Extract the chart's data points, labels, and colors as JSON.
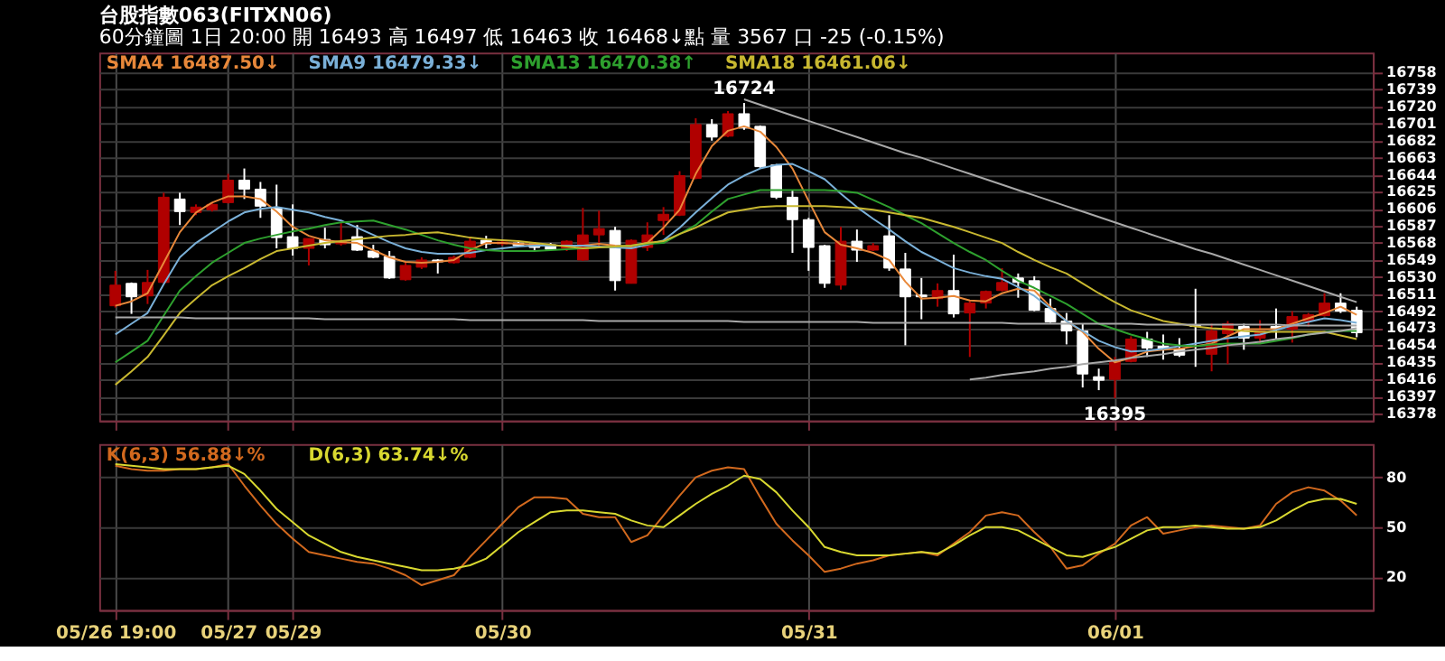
{
  "chart_data": [
    {
      "type": "candlestick",
      "title": "台股指數063(FITXN06)",
      "subtitle": "60分鐘圖  1日 20:00  開 16493  高 16497  低 16463  收 16468↓點  量 3567 口  -25 (-0.15%)",
      "ohlc": [
        [
          16498,
          16537,
          16496,
          16521
        ],
        [
          16523,
          16524,
          16489,
          16508
        ],
        [
          16509,
          16538,
          16500,
          16524
        ],
        [
          16524,
          16624,
          16523,
          16619
        ],
        [
          16617,
          16624,
          16588,
          16603
        ],
        [
          16602,
          16611,
          16599,
          16608
        ],
        [
          16605,
          16613,
          16603,
          16611
        ],
        [
          16613,
          16645,
          16612,
          16638
        ],
        [
          16638,
          16651,
          16617,
          16628
        ],
        [
          16628,
          16636,
          16596,
          16609
        ],
        [
          16607,
          16633,
          16562,
          16574
        ],
        [
          16575,
          16611,
          16554,
          16562
        ],
        [
          16562,
          16573,
          16543,
          16573
        ],
        [
          16572,
          16585,
          16562,
          16566
        ],
        [
          16567,
          16591,
          16565,
          16570
        ],
        [
          16575,
          16588,
          16559,
          16560
        ],
        [
          16559,
          16566,
          16551,
          16552
        ],
        [
          16553,
          16559,
          16528,
          16529
        ],
        [
          16527,
          16546,
          16526,
          16543
        ],
        [
          16541,
          16552,
          16539,
          16549
        ],
        [
          16549,
          16550,
          16534,
          16547
        ],
        [
          16546,
          16554,
          16545,
          16552
        ],
        [
          16552,
          16575,
          16551,
          16570
        ],
        [
          16571,
          16576,
          16562,
          16567
        ],
        [
          16567,
          16571,
          16565,
          16569
        ],
        [
          16568,
          16570,
          16563,
          16565
        ],
        [
          16567,
          16569,
          16560,
          16563
        ],
        [
          16566,
          16568,
          16560,
          16561
        ],
        [
          16562,
          16571,
          16559,
          16570
        ],
        [
          16549,
          16607,
          16548,
          16577
        ],
        [
          16577,
          16604,
          16565,
          16584
        ],
        [
          16582,
          16586,
          16515,
          16526
        ],
        [
          16523,
          16572,
          16523,
          16571
        ],
        [
          16563,
          16591,
          16559,
          16577
        ],
        [
          16593,
          16608,
          16577,
          16600
        ],
        [
          16599,
          16648,
          16598,
          16643
        ],
        [
          16640,
          16707,
          16639,
          16700
        ],
        [
          16700,
          16706,
          16682,
          16686
        ],
        [
          16687,
          16715,
          16686,
          16712
        ],
        [
          16712,
          16724,
          16694,
          16696
        ],
        [
          16698,
          16699,
          16651,
          16653
        ],
        [
          16655,
          16656,
          16617,
          16619
        ],
        [
          16619,
          16627,
          16557,
          16594
        ],
        [
          16594,
          16596,
          16537,
          16563
        ],
        [
          16565,
          16566,
          16518,
          16523
        ],
        [
          16521,
          16586,
          16516,
          16570
        ],
        [
          16570,
          16583,
          16547,
          16560
        ],
        [
          16560,
          16568,
          16559,
          16565
        ],
        [
          16576,
          16599,
          16537,
          16540
        ],
        [
          16539,
          16557,
          16454,
          16508
        ],
        [
          16510,
          16529,
          16483,
          16508
        ],
        [
          16506,
          16523,
          16497,
          16515
        ],
        [
          16515,
          16555,
          16485,
          16489
        ],
        [
          16490,
          16503,
          16441,
          16501
        ],
        [
          16501,
          16515,
          16495,
          16514
        ],
        [
          16515,
          16540,
          16514,
          16524
        ],
        [
          16529,
          16534,
          16507,
          16524
        ],
        [
          16526,
          16531,
          16492,
          16493
        ],
        [
          16495,
          16506,
          16479,
          16480
        ],
        [
          16481,
          16490,
          16455,
          16470
        ],
        [
          16470,
          16478,
          16407,
          16422
        ],
        [
          16419,
          16428,
          16404,
          16415
        ],
        [
          16416,
          16441,
          16395,
          16436
        ],
        [
          16436,
          16464,
          16435,
          16461
        ],
        [
          16461,
          16469,
          16441,
          16451
        ],
        [
          16453,
          16466,
          16438,
          16450
        ],
        [
          16450,
          16462,
          16441,
          16443
        ],
        [
          16476,
          16517,
          16430,
          16475
        ],
        [
          16444,
          16478,
          16425,
          16470
        ],
        [
          16467,
          16481,
          16433,
          16478
        ],
        [
          16475,
          16478,
          16449,
          16462
        ],
        [
          16462,
          16482,
          16456,
          16470
        ],
        [
          16475,
          16495,
          16461,
          16472
        ],
        [
          16472,
          16492,
          16457,
          16486
        ],
        [
          16481,
          16490,
          16475,
          16488
        ],
        [
          16487,
          16512,
          16486,
          16501
        ],
        [
          16501,
          16512,
          16490,
          16492
        ],
        [
          16493,
          16497,
          16463,
          16468
        ]
      ],
      "colors": [
        "#b00000",
        "#ffffff",
        "#b00000",
        "#b00000",
        "#ffffff",
        "#b00000",
        "#b00000",
        "#b00000",
        "#ffffff",
        "#ffffff",
        "#ffffff",
        "#ffffff",
        "#b00000",
        "#ffffff",
        "#b00000",
        "#ffffff",
        "#ffffff",
        "#ffffff",
        "#b00000",
        "#b00000",
        "#ffffff",
        "#b00000",
        "#b00000",
        "#ffffff",
        "#b00000",
        "#ffffff",
        "#ffffff",
        "#ffffff",
        "#b00000",
        "#b00000",
        "#b00000",
        "#ffffff",
        "#b00000",
        "#b00000",
        "#b00000",
        "#b00000",
        "#b00000",
        "#ffffff",
        "#b00000",
        "#ffffff",
        "#ffffff",
        "#ffffff",
        "#ffffff",
        "#ffffff",
        "#ffffff",
        "#b00000",
        "#ffffff",
        "#b00000",
        "#ffffff",
        "#ffffff",
        "#ffffff",
        "#b00000",
        "#ffffff",
        "#b00000",
        "#b00000",
        "#b00000",
        "#ffffff",
        "#ffffff",
        "#ffffff",
        "#ffffff",
        "#ffffff",
        "#ffffff",
        "#b00000",
        "#b00000",
        "#ffffff",
        "#ffffff",
        "#ffffff",
        "#ffffff",
        "#b00000",
        "#b00000",
        "#ffffff",
        "#b00000",
        "#ffffff",
        "#b00000",
        "#b00000",
        "#b00000",
        "#ffffff",
        "#ffffff"
      ],
      "series": [
        {
          "name": "SMA4 16487.50↓",
          "type": "line",
          "color": "#e8883a",
          "values": [
            16498,
            16503,
            16512,
            16546,
            16580,
            16602,
            16613,
            16620,
            16620,
            16617,
            16603,
            16586,
            16576,
            16571,
            16569,
            16568,
            16560,
            16552,
            16547,
            16546,
            16547,
            16549,
            16560,
            16568,
            16568,
            16567,
            16566,
            16565,
            16565,
            16565,
            16567,
            16565,
            16564,
            16568,
            16585,
            16605,
            16645,
            16676,
            16693,
            16698,
            16692,
            16675,
            16651,
            16615,
            16580,
            16566,
            16562,
            16557,
            16549,
            16525,
            16506,
            16507,
            16509,
            16504,
            16503,
            16512,
            16517,
            16515,
            16497,
            16481,
            16469,
            16450,
            16435,
            16440,
            16447,
            16449,
            16450,
            16453,
            16456,
            16464,
            16472,
            16472,
            16472,
            16478,
            16484,
            16490,
            16497,
            16488
          ]
        },
        {
          "name": "SMA9 16479.33↓",
          "type": "line",
          "color": "#7ab0d8",
          "values": [
            16466,
            16478,
            16490,
            16522,
            16552,
            16568,
            16580,
            16592,
            16602,
            16606,
            16608,
            16605,
            16602,
            16597,
            16593,
            16585,
            16577,
            16569,
            16562,
            16558,
            16556,
            16556,
            16557,
            16560,
            16562,
            16564,
            16565,
            16565,
            16565,
            16565,
            16564,
            16563,
            16562,
            16566,
            16571,
            16585,
            16602,
            16618,
            16633,
            16643,
            16651,
            16655,
            16656,
            16648,
            16639,
            16623,
            16608,
            16595,
            16583,
            16570,
            16558,
            16549,
            16540,
            16535,
            16531,
            16528,
            16519,
            16509,
            16495,
            16481,
            16470,
            16459,
            16452,
            16447,
            16448,
            16450,
            16453,
            16456,
            16459,
            16462,
            16464,
            16466,
            16471,
            16476,
            16480,
            16484,
            16482,
            16479
          ]
        },
        {
          "name": "SMA13 16470.38↑",
          "type": "line",
          "color": "#2ea02e",
          "values": [
            16435,
            16447,
            16459,
            16487,
            16515,
            16531,
            16546,
            16557,
            16568,
            16573,
            16577,
            16581,
            16584,
            16588,
            16591,
            16592,
            16593,
            16588,
            16583,
            16577,
            16571,
            16566,
            16562,
            16560,
            16559,
            16559,
            16559,
            16560,
            16561,
            16562,
            16563,
            16564,
            16565,
            16567,
            16568,
            16578,
            16588,
            16603,
            16617,
            16622,
            16627,
            16627,
            16627,
            16627,
            16627,
            16626,
            16624,
            16616,
            16608,
            16599,
            16590,
            16579,
            16568,
            16558,
            16549,
            16537,
            16526,
            16518,
            16509,
            16500,
            16489,
            16478,
            16472,
            16466,
            16461,
            16456,
            16454,
            16453,
            16455,
            16456,
            16456,
            16456,
            16459,
            16462,
            16466,
            16469,
            16470,
            16470
          ]
        },
        {
          "name": "SMA18 16461.06↓",
          "type": "line",
          "color": "#c8b830",
          "values": [
            16410,
            16425,
            16441,
            16465,
            16490,
            16506,
            16521,
            16531,
            16540,
            16550,
            16559,
            16562,
            16565,
            16568,
            16570,
            16572,
            16574,
            16576,
            16577,
            16579,
            16580,
            16577,
            16574,
            16572,
            16571,
            16570,
            16568,
            16566,
            16564,
            16562,
            16563,
            16564,
            16565,
            16568,
            16570,
            16578,
            16585,
            16594,
            16602,
            16605,
            16608,
            16609,
            16609,
            16609,
            16609,
            16608,
            16607,
            16605,
            16602,
            16599,
            16596,
            16591,
            16586,
            16580,
            16574,
            16568,
            16558,
            16549,
            16541,
            16534,
            16523,
            16512,
            16502,
            16493,
            16487,
            16481,
            16478,
            16475,
            16473,
            16472,
            16470,
            16469,
            16469,
            16469,
            16469,
            16469,
            16465,
            16461
          ]
        },
        {
          "type": "line",
          "color": "#a8a8a8",
          "values": [
            16485,
            16485,
            16485,
            16485,
            16485,
            16484,
            16484,
            16484,
            16484,
            16484,
            16484,
            16484,
            16484,
            16483,
            16483,
            16483,
            16483,
            16483,
            16483,
            16483,
            16483,
            16483,
            16482,
            16482,
            16482,
            16482,
            16482,
            16482,
            16482,
            16482,
            16481,
            16481,
            16481,
            16481,
            16481,
            16481,
            16481,
            16481,
            16481,
            16480,
            16480,
            16480,
            16480,
            16480,
            16480,
            16480,
            16480,
            16479,
            16479,
            16479,
            16479,
            16479,
            16479,
            16479,
            16479,
            16479,
            16478,
            16478,
            16478,
            16478,
            16478,
            16478,
            16478,
            16478,
            16477,
            16477,
            16477,
            16477,
            16477,
            16477,
            16477,
            16477,
            16477,
            16476,
            16476,
            16476,
            16476,
            16476
          ]
        },
        {
          "type": "line",
          "color": "#a8a8a8",
          "values": [
            null,
            null,
            null,
            null,
            null,
            null,
            null,
            null,
            null,
            null,
            null,
            null,
            null,
            null,
            null,
            null,
            null,
            null,
            null,
            null,
            null,
            null,
            null,
            null,
            null,
            null,
            null,
            null,
            null,
            null,
            null,
            null,
            null,
            null,
            null,
            null,
            null,
            null,
            null,
            16728,
            16722,
            16716,
            16710,
            16704,
            16698,
            16692,
            16686,
            16680,
            16674,
            16668,
            16663,
            16657,
            16651,
            16645,
            16639,
            16633,
            16627,
            16621,
            16615,
            16609,
            16603,
            16597,
            16591,
            16585,
            16579,
            16573,
            16567,
            16561,
            16556,
            16550,
            16544,
            16538,
            16532,
            16526,
            16520,
            16514,
            16508,
            16502
          ]
        },
        {
          "type": "line",
          "color": "#a8a8a8",
          "values": [
            null,
            null,
            null,
            null,
            null,
            null,
            null,
            null,
            null,
            null,
            null,
            null,
            null,
            null,
            null,
            null,
            null,
            null,
            null,
            null,
            null,
            null,
            null,
            null,
            null,
            null,
            null,
            null,
            null,
            null,
            null,
            null,
            null,
            null,
            null,
            null,
            null,
            null,
            null,
            null,
            null,
            null,
            null,
            null,
            null,
            null,
            null,
            null,
            null,
            null,
            null,
            null,
            null,
            16416,
            16418,
            16421,
            16423,
            16425,
            16428,
            16430,
            16433,
            16435,
            16437,
            16440,
            16442,
            16444,
            16447,
            16449,
            16451,
            16454,
            16456,
            16458,
            16461,
            16463,
            16466,
            16468,
            16470,
            16473
          ]
        }
      ],
      "ylim": [
        16370,
        16780
      ],
      "yticks": [
        16378,
        16397,
        16416,
        16435,
        16454,
        16473,
        16492,
        16511,
        16530,
        16549,
        16568,
        16587,
        16606,
        16625,
        16644,
        16663,
        16682,
        16701,
        16720,
        16739,
        16758
      ],
      "annotations": [
        {
          "text": "16724",
          "y": 16724
        },
        {
          "text": "16395",
          "y": 16395
        }
      ],
      "grid": true,
      "legend": "top left",
      "tick_labels": "y"
    },
    {
      "type": "line",
      "categories": [
        "05/26 19:00",
        null,
        null,
        null,
        null,
        null,
        null,
        "05/27",
        null,
        null,
        null,
        "05/29",
        null,
        null,
        null,
        null,
        null,
        null,
        null,
        null,
        null,
        null,
        null,
        null,
        "05/30",
        null,
        null,
        null,
        null,
        null,
        null,
        null,
        null,
        null,
        null,
        null,
        null,
        null,
        null,
        null,
        null,
        null,
        null,
        "05/31",
        null,
        null,
        null,
        null,
        null,
        null,
        null,
        null,
        null,
        null,
        null,
        null,
        null,
        null,
        null,
        null,
        null,
        null,
        "06/01",
        null,
        null,
        null,
        null,
        null,
        null,
        null,
        null,
        null,
        null,
        null,
        null,
        null,
        null,
        null
      ],
      "series": [
        {
          "name": "K(6,3) 56.88↓%",
          "color": "#d2691e",
          "values": [
            87,
            85,
            84,
            84,
            85,
            85,
            86,
            88,
            75,
            63,
            52,
            43,
            35,
            33,
            31,
            29,
            28,
            25,
            21,
            15,
            18,
            21,
            32,
            42,
            52,
            62,
            68,
            68,
            67,
            58,
            56,
            56,
            41,
            45,
            57,
            69,
            80,
            84,
            86,
            85,
            68,
            52,
            42,
            33,
            23,
            25,
            28,
            30,
            33,
            34,
            35,
            33,
            40,
            47,
            57,
            59,
            57,
            47,
            38,
            25,
            27,
            34,
            40,
            51,
            56,
            46,
            48,
            50,
            51,
            50,
            49,
            51,
            64,
            71,
            74,
            72,
            66,
            57
          ]
        },
        {
          "name": "D(6,3) 63.74↓%",
          "color": "#d8d830",
          "values": [
            88,
            87,
            86,
            85,
            85,
            85,
            86,
            87,
            82,
            72,
            61,
            53,
            45,
            40,
            35,
            32,
            30,
            28,
            26,
            24,
            24,
            25,
            27,
            31,
            39,
            47,
            53,
            59,
            60,
            60,
            59,
            58,
            54,
            51,
            50,
            57,
            64,
            70,
            75,
            81,
            79,
            71,
            60,
            50,
            38,
            35,
            33,
            33,
            33,
            34,
            35,
            34,
            39,
            45,
            50,
            50,
            48,
            43,
            38,
            33,
            32,
            35,
            38,
            43,
            48,
            50,
            50,
            51,
            50,
            49,
            49,
            50,
            54,
            60,
            65,
            67,
            67,
            64
          ]
        }
      ],
      "ylim": [
        0,
        100
      ],
      "yticks": [
        20,
        50,
        80
      ],
      "grid": true,
      "legend": "top left"
    }
  ]
}
